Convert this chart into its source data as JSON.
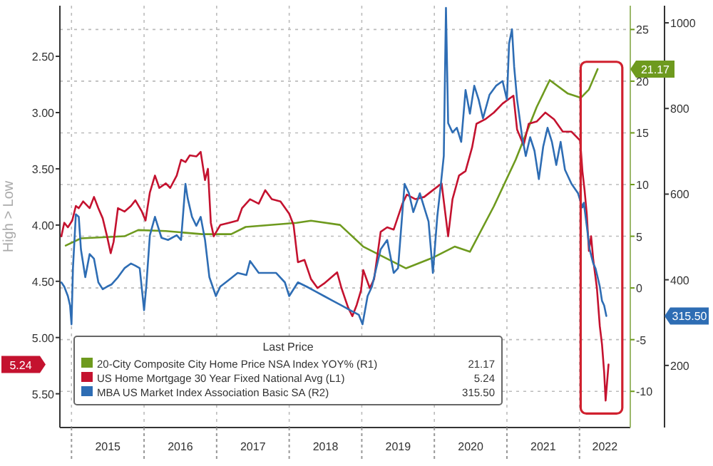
{
  "chart_data": {
    "type": "line",
    "ylabel": "High > Low",
    "legend_title": "Last Price",
    "legend": "bottom left",
    "grid": true,
    "xlim": [
      2014.84,
      2022.7
    ],
    "xticks": [
      {
        "value": 2015,
        "label": null
      },
      {
        "value": 2015.5,
        "label": "2015"
      },
      {
        "value": 2016,
        "label": null
      },
      {
        "value": 2016.5,
        "label": "2016"
      },
      {
        "value": 2017,
        "label": null
      },
      {
        "value": 2017.5,
        "label": "2017"
      },
      {
        "value": 2018,
        "label": null
      },
      {
        "value": 2018.5,
        "label": "2018"
      },
      {
        "value": 2019,
        "label": null
      },
      {
        "value": 2019.5,
        "label": "2019"
      },
      {
        "value": 2020,
        "label": null
      },
      {
        "value": 2020.5,
        "label": "2020"
      },
      {
        "value": 2021,
        "label": null
      },
      {
        "value": 2021.5,
        "label": "2021"
      },
      {
        "value": 2022,
        "label": null
      },
      {
        "value": 2022.35,
        "label": "2022"
      }
    ],
    "ylim": [
      5.8,
      2.05
    ],
    "yticks": [
      {
        "value": 2.5,
        "label": "2.50"
      },
      {
        "value": 3,
        "label": "3.00"
      },
      {
        "value": 3.5,
        "label": "3.50"
      },
      {
        "value": 4,
        "label": "4.00"
      },
      {
        "value": 4.5,
        "label": "4.50"
      },
      {
        "value": 5,
        "label": "5.00"
      },
      {
        "value": 5.5,
        "label": "5.50"
      }
    ],
    "y2lim": [
      -13.5,
      27.3
    ],
    "y2ticks": [
      -10,
      -5,
      0,
      5,
      10,
      15,
      20,
      25
    ],
    "y3lim": [
      55,
      1040
    ],
    "y3ticks": [
      200,
      400,
      600,
      800,
      1000
    ],
    "annotations": [
      "21.17",
      "5.24",
      "315.50"
    ],
    "series": [
      {
        "name": "20-City Composite City Home Price NSA Index YOY%  (R1)",
        "color": "#6e9a1e",
        "axis": "y2",
        "x": [
          2014.92,
          2015.13,
          2015.73,
          2015.92,
          2016.3,
          2016.8,
          2017.2,
          2017.4,
          2018.1,
          2018.3,
          2018.7,
          2019.02,
          2019.61,
          2019.97,
          2020.28,
          2020.49,
          2020.82,
          2021.12,
          2021.41,
          2021.59,
          2021.84,
          2022.02,
          2022.13,
          2022.25
        ],
        "values": [
          4.1,
          4.8,
          5.0,
          5.6,
          5.5,
          5.2,
          5.2,
          5.9,
          6.3,
          6.5,
          6.1,
          4.0,
          1.9,
          2.9,
          4.0,
          3.5,
          7.9,
          12.4,
          17.5,
          20.1,
          18.8,
          18.4,
          19.2,
          21.17
        ]
      },
      {
        "name": "US Home Mortgage 30 Year Fixed National Avg  (L1)",
        "color": "#c4122f",
        "axis": "y",
        "x": [
          2014.86,
          2014.9,
          2014.95,
          2015.01,
          2015.06,
          2015.1,
          2015.16,
          2015.25,
          2015.31,
          2015.37,
          2015.43,
          2015.49,
          2015.54,
          2015.58,
          2015.64,
          2015.73,
          2015.82,
          2015.88,
          2015.97,
          2016.02,
          2016.08,
          2016.15,
          2016.21,
          2016.3,
          2016.36,
          2016.45,
          2016.51,
          2016.57,
          2016.63,
          2016.72,
          2016.78,
          2016.84,
          2016.88,
          2016.92,
          2016.96,
          2017.05,
          2017.17,
          2017.29,
          2017.35,
          2017.46,
          2017.58,
          2017.67,
          2017.76,
          2017.88,
          2018.0,
          2018.06,
          2018.12,
          2018.21,
          2018.3,
          2018.39,
          2018.48,
          2018.66,
          2018.72,
          2018.81,
          2018.87,
          2018.93,
          2018.99,
          2019.02,
          2019.11,
          2019.17,
          2019.26,
          2019.35,
          2019.44,
          2019.56,
          2019.62,
          2019.74,
          2019.86,
          2019.98,
          2020.1,
          2020.19,
          2020.25,
          2020.34,
          2020.43,
          2020.52,
          2020.58,
          2020.7,
          2020.82,
          2020.94,
          2021.09,
          2021.14,
          2021.23,
          2021.3,
          2021.41,
          2021.53,
          2021.65,
          2021.77,
          2021.89,
          2022.01,
          2022.04,
          2022.07,
          2022.1,
          2022.13,
          2022.16,
          2022.19,
          2022.24,
          2022.28,
          2022.31,
          2022.34,
          2022.36,
          2022.38,
          2022.4
        ],
        "values": [
          4.1,
          3.98,
          4.02,
          3.96,
          3.83,
          3.85,
          3.79,
          3.85,
          3.75,
          3.85,
          3.94,
          4.1,
          4.25,
          4.15,
          3.85,
          3.88,
          3.83,
          3.78,
          3.88,
          3.96,
          3.71,
          3.56,
          3.67,
          3.63,
          3.67,
          3.56,
          3.42,
          3.44,
          3.38,
          3.39,
          3.35,
          3.6,
          3.5,
          3.98,
          4.1,
          4.0,
          3.98,
          3.96,
          3.85,
          3.77,
          3.81,
          3.69,
          3.77,
          3.79,
          3.9,
          4.0,
          4.33,
          4.31,
          4.48,
          4.56,
          4.52,
          4.42,
          4.56,
          4.73,
          4.81,
          4.71,
          4.58,
          4.4,
          4.56,
          4.48,
          4.06,
          4.02,
          4.04,
          3.81,
          3.73,
          3.77,
          3.75,
          3.69,
          3.63,
          4.1,
          3.77,
          3.56,
          3.52,
          3.31,
          3.1,
          3.06,
          3.0,
          2.92,
          2.85,
          3.15,
          3.29,
          3.1,
          3.08,
          3.0,
          3.06,
          3.17,
          3.17,
          3.25,
          3.52,
          3.69,
          3.9,
          4.23,
          4.1,
          4.31,
          4.56,
          4.9,
          5.06,
          5.31,
          5.56,
          5.4,
          5.24
        ]
      },
      {
        "name": "MBA US Market Index Association Basic SA  (R2)",
        "color": "#2e6db4",
        "axis": "y3",
        "x": [
          2014.86,
          2014.9,
          2014.95,
          2014.98,
          2015.0,
          2015.02,
          2015.06,
          2015.1,
          2015.13,
          2015.19,
          2015.25,
          2015.31,
          2015.37,
          2015.43,
          2015.49,
          2015.55,
          2015.64,
          2015.73,
          2015.82,
          2015.88,
          2015.94,
          2016.0,
          2016.03,
          2016.08,
          2016.15,
          2016.24,
          2016.33,
          2016.45,
          2016.51,
          2016.54,
          2016.57,
          2016.6,
          2016.66,
          2016.72,
          2016.78,
          2016.84,
          2016.9,
          2016.99,
          2017.05,
          2017.17,
          2017.29,
          2017.41,
          2017.46,
          2017.58,
          2017.71,
          2017.82,
          2017.94,
          2018.0,
          2018.12,
          2018.24,
          2018.36,
          2018.48,
          2018.6,
          2018.72,
          2018.84,
          2018.96,
          2019.01,
          2019.08,
          2019.14,
          2019.26,
          2019.35,
          2019.44,
          2019.5,
          2019.59,
          2019.65,
          2019.71,
          2019.8,
          2019.86,
          2019.92,
          2019.98,
          2020.04,
          2020.09,
          2020.13,
          2020.16,
          2020.19,
          2020.25,
          2020.31,
          2020.37,
          2020.43,
          2020.49,
          2020.55,
          2020.61,
          2020.67,
          2020.76,
          2020.85,
          2020.94,
          2021.0,
          2021.03,
          2021.07,
          2021.1,
          2021.14,
          2021.21,
          2021.26,
          2021.32,
          2021.38,
          2021.44,
          2021.5,
          2021.56,
          2021.62,
          2021.68,
          2021.74,
          2021.8,
          2021.89,
          2021.98,
          2022.04,
          2022.06,
          2022.1,
          2022.14,
          2022.19,
          2022.22,
          2022.25,
          2022.28,
          2022.31,
          2022.34,
          2022.37
        ],
        "values": [
          394,
          384,
          362,
          340,
          296,
          427,
          553,
          547,
          471,
          406,
          460,
          449,
          394,
          378,
          384,
          389,
          406,
          427,
          438,
          433,
          427,
          329,
          384,
          504,
          547,
          498,
          493,
          504,
          493,
          558,
          624,
          591,
          547,
          526,
          547,
          493,
          406,
          362,
          384,
          400,
          416,
          411,
          444,
          416,
          416,
          416,
          394,
          362,
          394,
          384,
          373,
          362,
          351,
          340,
          329,
          318,
          296,
          362,
          384,
          471,
          493,
          416,
          427,
          624,
          602,
          558,
          602,
          569,
          536,
          416,
          547,
          624,
          689,
          1035,
          766,
          744,
          755,
          722,
          843,
          788,
          853,
          821,
          777,
          832,
          853,
          864,
          821,
          952,
          985,
          897,
          821,
          733,
          689,
          733,
          701,
          635,
          711,
          755,
          722,
          668,
          722,
          657,
          624,
          602,
          569,
          580,
          526,
          471,
          438,
          427,
          406,
          384,
          351,
          340,
          315.5
        ]
      }
    ]
  }
}
